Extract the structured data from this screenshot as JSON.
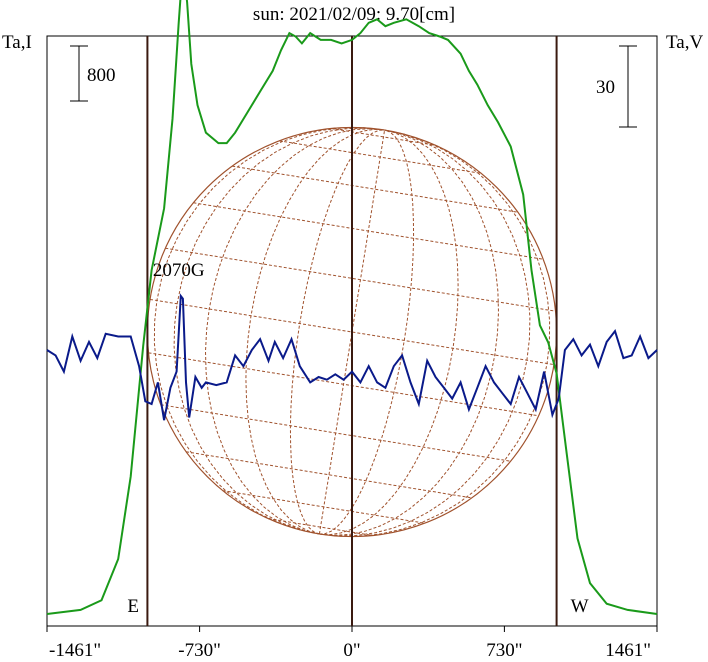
{
  "chart_data": {
    "type": "line",
    "title": "sun: 2021/02/09: 9.70[cm]",
    "title_color": "#1a237e",
    "left_axis_label": "Ta,I",
    "right_axis_label": "Ta,V",
    "left_scale_bar": "800",
    "right_scale_bar": "30",
    "x_ticks": [
      {
        "value": -1461,
        "label": "-1461\""
      },
      {
        "value": -730,
        "label": "-730\""
      },
      {
        "value": 0,
        "label": "0\""
      },
      {
        "value": 730,
        "label": "730\""
      },
      {
        "value": 1461,
        "label": "1461\""
      }
    ],
    "xlim": [
      -1461,
      1461
    ],
    "limb_markers": [
      {
        "label": "E",
        "x": -980
      },
      {
        "label": "W",
        "x": 980
      }
    ],
    "annotation": {
      "text": "2070G",
      "x": -810
    },
    "colors": {
      "stokes_i": "#1a9a1a",
      "stokes_v": "#0a1a8a",
      "grid": "#a0522d",
      "vlines": "#3a1a10"
    },
    "series": [
      {
        "key": "I",
        "unit_per_scale_bar": 800,
        "points": [
          [
            -1461,
            0
          ],
          [
            -1300,
            60
          ],
          [
            -1200,
            200
          ],
          [
            -1120,
            800
          ],
          [
            -1060,
            2000
          ],
          [
            -1000,
            3900
          ],
          [
            -960,
            5000
          ],
          [
            -900,
            5900
          ],
          [
            -860,
            7200
          ],
          [
            -830,
            8600
          ],
          [
            -810,
            9450
          ],
          [
            -790,
            8900
          ],
          [
            -770,
            8000
          ],
          [
            -740,
            7400
          ],
          [
            -700,
            7000
          ],
          [
            -640,
            6850
          ],
          [
            -600,
            6850
          ],
          [
            -560,
            7000
          ],
          [
            -500,
            7300
          ],
          [
            -440,
            7600
          ],
          [
            -380,
            7900
          ],
          [
            -340,
            8200
          ],
          [
            -300,
            8450
          ],
          [
            -270,
            8400
          ],
          [
            -240,
            8300
          ],
          [
            -200,
            8450
          ],
          [
            -150,
            8350
          ],
          [
            -100,
            8350
          ],
          [
            -50,
            8300
          ],
          [
            0,
            8350
          ],
          [
            40,
            8450
          ],
          [
            80,
            8600
          ],
          [
            120,
            8650
          ],
          [
            160,
            8550
          ],
          [
            200,
            8600
          ],
          [
            260,
            8650
          ],
          [
            320,
            8550
          ],
          [
            370,
            8450
          ],
          [
            420,
            8400
          ],
          [
            460,
            8350
          ],
          [
            520,
            8150
          ],
          [
            560,
            7900
          ],
          [
            600,
            7700
          ],
          [
            650,
            7400
          ],
          [
            700,
            7150
          ],
          [
            760,
            6800
          ],
          [
            820,
            6100
          ],
          [
            860,
            5000
          ],
          [
            900,
            4200
          ],
          [
            940,
            3950
          ],
          [
            980,
            3500
          ],
          [
            1030,
            2300
          ],
          [
            1080,
            1100
          ],
          [
            1140,
            450
          ],
          [
            1220,
            150
          ],
          [
            1320,
            60
          ],
          [
            1461,
            0
          ]
        ]
      },
      {
        "key": "V",
        "unit_per_scale_bar": 30,
        "points": [
          [
            -1461,
            0
          ],
          [
            -1420,
            -2
          ],
          [
            -1380,
            -8
          ],
          [
            -1340,
            5
          ],
          [
            -1300,
            -4
          ],
          [
            -1260,
            3
          ],
          [
            -1220,
            -3
          ],
          [
            -1180,
            6
          ],
          [
            -1120,
            5
          ],
          [
            -1060,
            5
          ],
          [
            -1020,
            -6
          ],
          [
            -990,
            -19
          ],
          [
            -960,
            -20
          ],
          [
            -930,
            -12
          ],
          [
            -900,
            -26
          ],
          [
            -870,
            -14
          ],
          [
            -840,
            -8
          ],
          [
            -820,
            20
          ],
          [
            -810,
            19
          ],
          [
            -795,
            -12
          ],
          [
            -780,
            -25
          ],
          [
            -750,
            -10
          ],
          [
            -720,
            -14
          ],
          [
            -700,
            -12
          ],
          [
            -650,
            -13
          ],
          [
            -600,
            -12
          ],
          [
            -560,
            -2
          ],
          [
            -520,
            -6
          ],
          [
            -480,
            0
          ],
          [
            -440,
            4
          ],
          [
            -400,
            -4
          ],
          [
            -370,
            3
          ],
          [
            -330,
            -3
          ],
          [
            -290,
            4
          ],
          [
            -250,
            -6
          ],
          [
            -200,
            -12
          ],
          [
            -160,
            -10
          ],
          [
            -120,
            -11
          ],
          [
            -80,
            -9
          ],
          [
            -40,
            -11
          ],
          [
            0,
            -8
          ],
          [
            40,
            -12
          ],
          [
            80,
            -6
          ],
          [
            120,
            -12
          ],
          [
            160,
            -14
          ],
          [
            200,
            -6
          ],
          [
            240,
            -2
          ],
          [
            280,
            -12
          ],
          [
            320,
            -20
          ],
          [
            360,
            -4
          ],
          [
            400,
            -10
          ],
          [
            440,
            -14
          ],
          [
            480,
            -18
          ],
          [
            520,
            -12
          ],
          [
            560,
            -22
          ],
          [
            600,
            -14
          ],
          [
            640,
            -6
          ],
          [
            680,
            -12
          ],
          [
            720,
            -16
          ],
          [
            760,
            -20
          ],
          [
            800,
            -10
          ],
          [
            840,
            -16
          ],
          [
            880,
            -22
          ],
          [
            920,
            -8
          ],
          [
            960,
            -24
          ],
          [
            990,
            -18
          ],
          [
            1020,
            0
          ],
          [
            1060,
            4
          ],
          [
            1100,
            -2
          ],
          [
            1140,
            2
          ],
          [
            1180,
            -6
          ],
          [
            1220,
            3
          ],
          [
            1260,
            7
          ],
          [
            1300,
            -3
          ],
          [
            1340,
            -2
          ],
          [
            1380,
            5
          ],
          [
            1420,
            -3
          ],
          [
            1461,
            0
          ]
        ]
      }
    ]
  }
}
